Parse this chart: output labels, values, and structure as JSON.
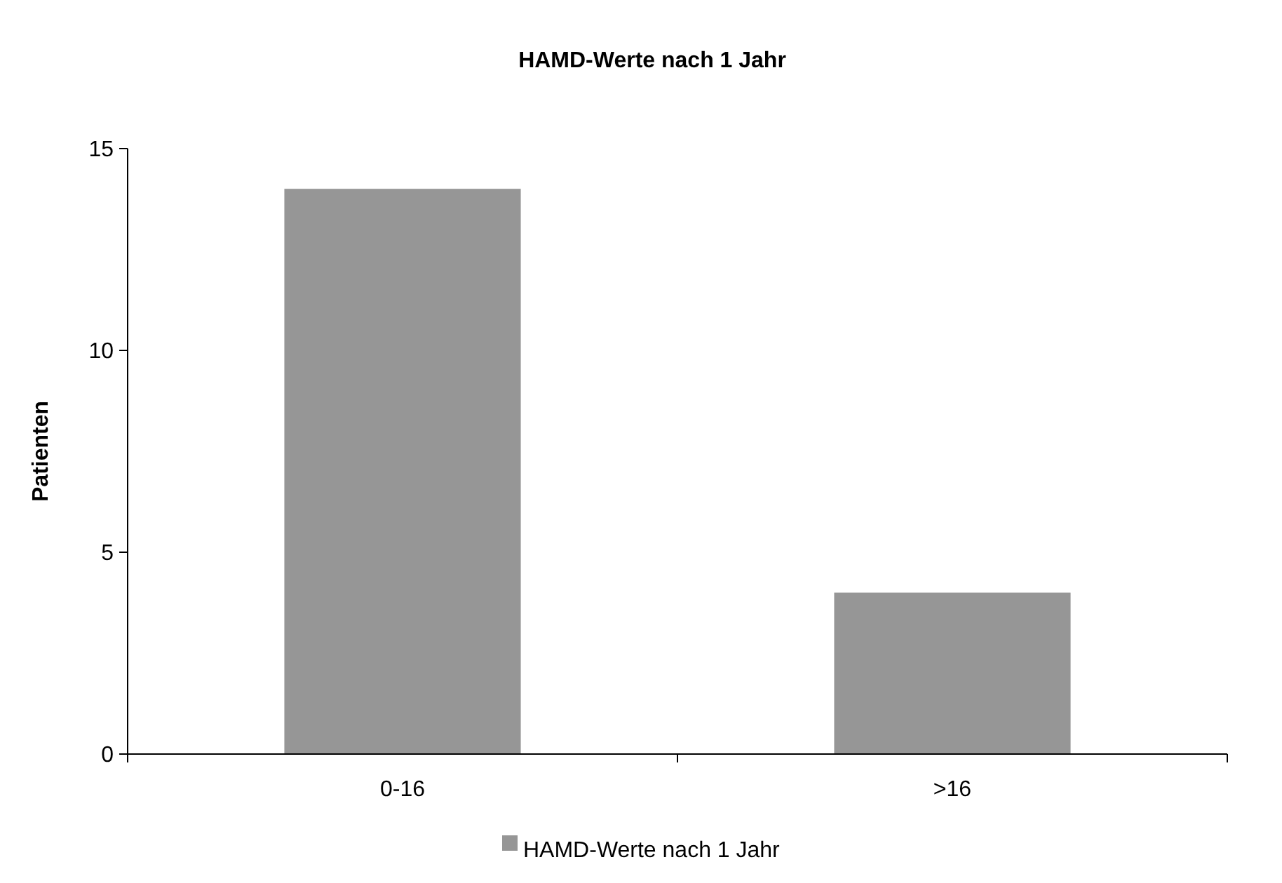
{
  "chart_data": {
    "type": "bar",
    "title": "HAMD-Werte nach 1 Jahr",
    "ylabel": "Patienten",
    "categories": [
      "0-16",
      ">16"
    ],
    "series": [
      {
        "name": "HAMD-Werte nach 1 Jahr",
        "color": "#969696",
        "values": [
          14,
          4
        ]
      }
    ],
    "ylim": [
      0,
      15
    ],
    "yticks": [
      0,
      5,
      10,
      15
    ],
    "grid": false,
    "legend": "bottom"
  }
}
